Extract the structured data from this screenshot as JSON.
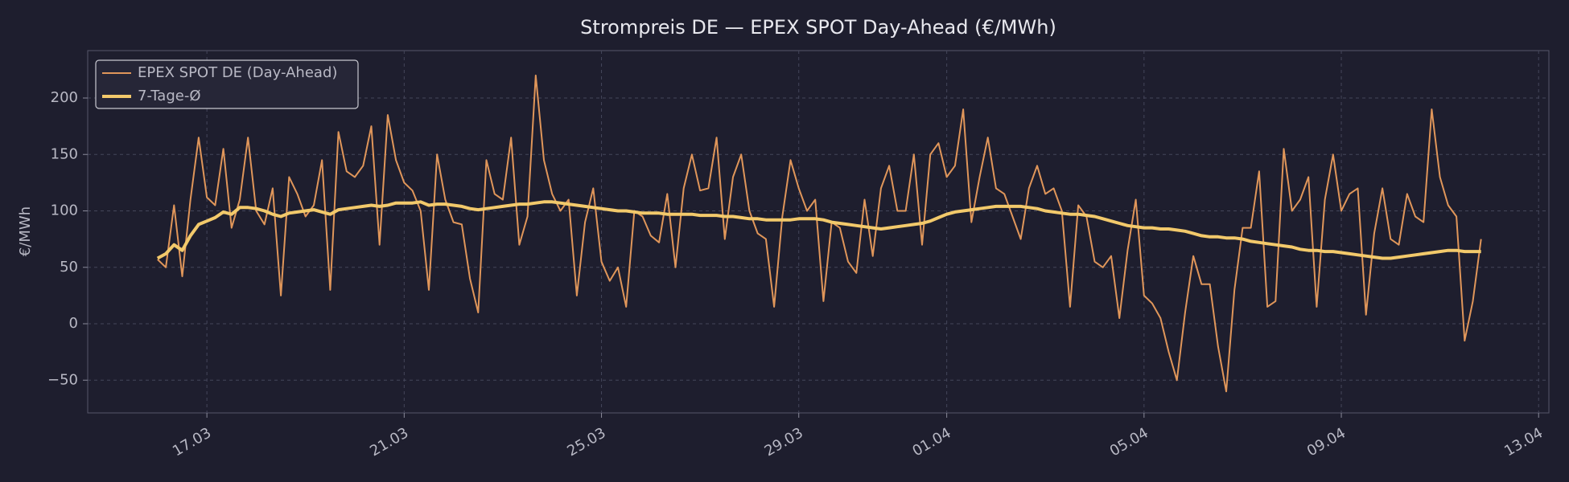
{
  "chart_data": {
    "type": "line",
    "title": "Strompreis DE — EPEX SPOT Day-Ahead (€/MWh)",
    "y_label": "€/MWh",
    "x": [
      "16.03 00:00",
      "16.03 04:00",
      "16.03 08:00",
      "16.03 12:00",
      "16.03 16:00",
      "16.03 20:00",
      "17.03 00:00",
      "17.03 04:00",
      "17.03 08:00",
      "17.03 12:00",
      "17.03 16:00",
      "17.03 20:00",
      "18.03 00:00",
      "18.03 04:00",
      "18.03 08:00",
      "18.03 12:00",
      "18.03 16:00",
      "18.03 20:00",
      "19.03 00:00",
      "19.03 04:00",
      "19.03 08:00",
      "19.03 12:00",
      "19.03 16:00",
      "19.03 20:00",
      "20.03 00:00",
      "20.03 04:00",
      "20.03 08:00",
      "20.03 12:00",
      "20.03 16:00",
      "20.03 20:00",
      "21.03 00:00",
      "21.03 04:00",
      "21.03 08:00",
      "21.03 12:00",
      "21.03 16:00",
      "21.03 20:00",
      "22.03 00:00",
      "22.03 04:00",
      "22.03 08:00",
      "22.03 12:00",
      "22.03 16:00",
      "22.03 20:00",
      "23.03 00:00",
      "23.03 04:00",
      "23.03 08:00",
      "23.03 12:00",
      "23.03 16:00",
      "23.03 20:00",
      "24.03 00:00",
      "24.03 04:00",
      "24.03 08:00",
      "24.03 12:00",
      "24.03 16:00",
      "24.03 20:00",
      "25.03 00:00",
      "25.03 04:00",
      "25.03 08:00",
      "25.03 12:00",
      "25.03 16:00",
      "25.03 20:00",
      "26.03 00:00",
      "26.03 04:00",
      "26.03 08:00",
      "26.03 12:00",
      "26.03 16:00",
      "26.03 20:00",
      "27.03 00:00",
      "27.03 04:00",
      "27.03 08:00",
      "27.03 12:00",
      "27.03 16:00",
      "27.03 20:00",
      "28.03 00:00",
      "28.03 04:00",
      "28.03 08:00",
      "28.03 12:00",
      "28.03 16:00",
      "28.03 20:00",
      "29.03 00:00",
      "29.03 04:00",
      "29.03 08:00",
      "29.03 12:00",
      "29.03 16:00",
      "29.03 20:00",
      "30.03 00:00",
      "30.03 04:00",
      "30.03 08:00",
      "30.03 12:00",
      "30.03 16:00",
      "30.03 20:00",
      "31.03 00:00",
      "31.03 04:00",
      "31.03 08:00",
      "31.03 12:00",
      "31.03 16:00",
      "31.03 20:00",
      "01.04 00:00",
      "01.04 04:00",
      "01.04 08:00",
      "01.04 12:00",
      "01.04 16:00",
      "01.04 20:00",
      "02.04 00:00",
      "02.04 04:00",
      "02.04 08:00",
      "02.04 12:00",
      "02.04 16:00",
      "02.04 20:00",
      "03.04 00:00",
      "03.04 04:00",
      "03.04 08:00",
      "03.04 12:00",
      "03.04 16:00",
      "03.04 20:00",
      "04.04 00:00",
      "04.04 04:00",
      "04.04 08:00",
      "04.04 12:00",
      "04.04 16:00",
      "04.04 20:00",
      "05.04 00:00",
      "05.04 04:00",
      "05.04 08:00",
      "05.04 12:00",
      "05.04 16:00",
      "05.04 20:00",
      "06.04 00:00",
      "06.04 04:00",
      "06.04 08:00",
      "06.04 12:00",
      "06.04 16:00",
      "06.04 20:00",
      "07.04 00:00",
      "07.04 04:00",
      "07.04 08:00",
      "07.04 12:00",
      "07.04 16:00",
      "07.04 20:00",
      "08.04 00:00",
      "08.04 04:00",
      "08.04 08:00",
      "08.04 12:00",
      "08.04 16:00",
      "08.04 20:00",
      "09.04 00:00",
      "09.04 04:00",
      "09.04 08:00",
      "09.04 12:00",
      "09.04 16:00",
      "09.04 20:00",
      "10.04 00:00",
      "10.04 04:00",
      "10.04 08:00",
      "10.04 12:00",
      "10.04 16:00",
      "10.04 20:00",
      "11.04 00:00",
      "11.04 04:00",
      "11.04 08:00",
      "11.04 12:00",
      "11.04 16:00",
      "11.04 20:00"
    ],
    "series": [
      {
        "name": "EPEX SPOT DE (Day-Ahead)",
        "color": "#e0965a",
        "width": 2,
        "values": [
          57,
          50,
          105,
          42,
          110,
          165,
          112,
          105,
          155,
          85,
          110,
          165,
          100,
          88,
          120,
          25,
          130,
          115,
          95,
          105,
          145,
          30,
          170,
          135,
          130,
          140,
          175,
          70,
          185,
          145,
          125,
          118,
          100,
          30,
          150,
          110,
          90,
          88,
          40,
          10,
          145,
          115,
          110,
          165,
          70,
          95,
          220,
          145,
          115,
          100,
          110,
          25,
          90,
          120,
          55,
          38,
          50,
          15,
          100,
          95,
          78,
          72,
          115,
          50,
          120,
          150,
          118,
          120,
          165,
          75,
          130,
          150,
          100,
          80,
          75,
          15,
          95,
          145,
          120,
          100,
          110,
          20,
          90,
          85,
          55,
          45,
          110,
          60,
          120,
          140,
          100,
          100,
          150,
          70,
          150,
          160,
          130,
          140,
          190,
          90,
          130,
          165,
          120,
          115,
          95,
          75,
          120,
          140,
          115,
          120,
          100,
          15,
          105,
          95,
          55,
          50,
          60,
          5,
          65,
          110,
          25,
          18,
          5,
          -25,
          -50,
          10,
          60,
          35,
          35,
          -20,
          -60,
          30,
          85,
          85,
          135,
          15,
          20,
          155,
          100,
          110,
          130,
          15,
          110,
          150,
          100,
          115,
          120,
          8,
          80,
          120,
          75,
          70,
          115,
          95,
          90,
          190,
          130,
          105,
          95,
          -15,
          20,
          75
        ]
      },
      {
        "name": "7-Tage-Ø",
        "color": "#f2c96b",
        "width": 4,
        "values": [
          58,
          62,
          70,
          65,
          78,
          88,
          91,
          94,
          99,
          97,
          103,
          103,
          102,
          100,
          97,
          95,
          98,
          99,
          100,
          101,
          99,
          97,
          101,
          102,
          103,
          104,
          105,
          104,
          105,
          107,
          107,
          107,
          108,
          105,
          106,
          106,
          105,
          104,
          102,
          101,
          102,
          103,
          104,
          105,
          106,
          106,
          107,
          108,
          108,
          107,
          106,
          105,
          104,
          103,
          102,
          101,
          100,
          100,
          99,
          98,
          98,
          98,
          97,
          97,
          97,
          97,
          96,
          96,
          96,
          95,
          95,
          94,
          93,
          93,
          92,
          92,
          92,
          92,
          93,
          93,
          93,
          92,
          90,
          89,
          88,
          87,
          86,
          85,
          84,
          85,
          86,
          87,
          88,
          89,
          91,
          94,
          97,
          99,
          100,
          101,
          102,
          103,
          104,
          104,
          104,
          104,
          103,
          102,
          100,
          99,
          98,
          97,
          97,
          96,
          95,
          93,
          91,
          89,
          87,
          86,
          85,
          85,
          84,
          84,
          83,
          82,
          80,
          78,
          77,
          77,
          76,
          76,
          75,
          73,
          72,
          71,
          70,
          69,
          68,
          66,
          65,
          65,
          64,
          64,
          63,
          62,
          61,
          60,
          59,
          58,
          58,
          59,
          60,
          61,
          62,
          63,
          64,
          65,
          65,
          64,
          64,
          64
        ]
      }
    ],
    "xlim": [
      "14.03 14:00",
      "13.04 05:00"
    ],
    "xticks": [
      "17.03",
      "21.03",
      "25.03",
      "29.03",
      "01.04",
      "05.04",
      "09.04",
      "13.04"
    ],
    "ylim": [
      -79,
      242
    ],
    "yticks": [
      {
        "value": -50,
        "label": "−50"
      },
      0,
      50,
      100,
      150,
      200
    ],
    "grid": true,
    "legend": "upper left"
  }
}
